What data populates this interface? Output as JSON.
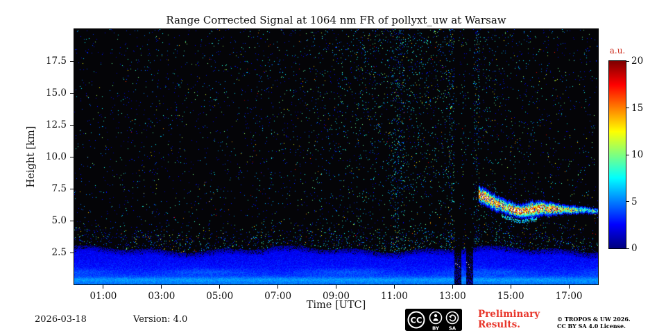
{
  "footer": {
    "date": "2026-03-18",
    "version": "Version: 4.0",
    "preliminary_line1": "Preliminary",
    "preliminary_line2": "Results.",
    "license_line1": "© TROPOS & UW 2026.",
    "license_line2": "CC BY SA 4.0 License.",
    "cc_badge": {
      "cc": "CC",
      "by": "BY",
      "sa": "SA"
    }
  },
  "chart_data": {
    "type": "heatmap",
    "title": "Range Corrected Signal at 1064 nm FR of pollyxt_uw at Warsaw",
    "xlabel": "Time [UTC]",
    "ylabel": "Height [km]",
    "x_ticks": [
      "01:00",
      "03:00",
      "05:00",
      "07:00",
      "09:00",
      "11:00",
      "13:00",
      "15:00",
      "17:00"
    ],
    "x_tick_hours": [
      1,
      3,
      5,
      7,
      9,
      11,
      13,
      15,
      17
    ],
    "x_range_hours": [
      0,
      18
    ],
    "y_ticks": [
      "2.5",
      "5.0",
      "7.5",
      "10.0",
      "12.5",
      "15.0",
      "17.5"
    ],
    "y_tick_km": [
      2.5,
      5.0,
      7.5,
      10.0,
      12.5,
      15.0,
      17.5
    ],
    "y_range_km": [
      0,
      20
    ],
    "colorbar": {
      "label": "a.u.",
      "ticks": [
        0,
        5,
        10,
        15,
        20
      ],
      "range": [
        0,
        20
      ],
      "colormap": "jet",
      "under_color": "black"
    },
    "features": {
      "boundary_layer": {
        "description": "strong blue aerosol signal from ground up to ~2.8 km with brighter cyan sub-layers",
        "top_km": 2.75,
        "surface_signal_au": 4.8,
        "decay_km": 1.1,
        "layer_streaks_km": [
          0.35,
          0.95
        ],
        "signal_au_range": [
          2,
          6
        ]
      },
      "noise": {
        "description": "sparse speckle noise over black background, denser and greener/yellower during daylight hours",
        "base_density": 0.015,
        "daylight_peak_hour": 11.5,
        "daylight_width_hours": 3.4
      },
      "cloud_layer": {
        "description": "bright broken cloud/aerosol layer descending from ~7.1 km at 14:00 to ~5.7 km by 18:00, white saturated core",
        "signal_au_range": [
          8,
          20
        ],
        "control_points": [
          [
            13.9,
            7.05,
            0.5,
            21
          ],
          [
            14.15,
            6.8,
            0.5,
            22
          ],
          [
            14.5,
            6.35,
            0.5,
            17
          ],
          [
            14.9,
            6.0,
            0.45,
            15
          ],
          [
            15.3,
            5.7,
            0.4,
            19
          ],
          [
            15.7,
            5.85,
            0.5,
            21
          ],
          [
            16.1,
            5.95,
            0.45,
            17
          ],
          [
            16.5,
            5.9,
            0.38,
            19
          ],
          [
            16.9,
            5.85,
            0.3,
            13
          ],
          [
            17.3,
            5.8,
            0.26,
            11
          ],
          [
            17.7,
            5.78,
            0.22,
            9
          ],
          [
            18.0,
            5.7,
            0.18,
            8
          ]
        ]
      },
      "calibration_gaps": [
        [
          13.08,
          13.3
        ],
        [
          13.48,
          13.72
        ]
      ],
      "noise_streak_windows": [
        [
          10.9,
          11.35
        ],
        [
          12.85,
          13.06
        ],
        [
          13.74,
          13.95
        ]
      ]
    }
  }
}
